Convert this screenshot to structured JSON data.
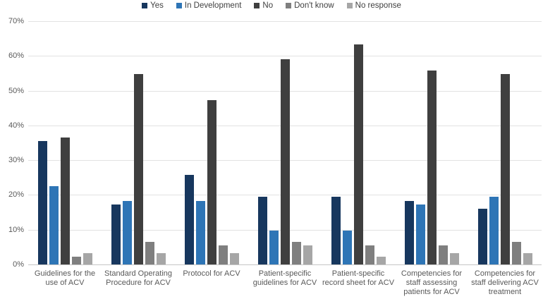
{
  "chart_data": {
    "type": "bar",
    "title": "",
    "categories": [
      "Guidelines for the use of ACV",
      "Standard Operating Procedure for ACV",
      "Protocol for ACV",
      "Patient-specific guidelines for ACV",
      "Patient-specific record sheet for ACV",
      "Competencies for staff assessing patients for ACV",
      "Competencies for staff delivering ACV treatment"
    ],
    "series": [
      {
        "name": "Yes",
        "color": "#17375E",
        "values": [
          35.5,
          17.2,
          25.8,
          19.4,
          19.4,
          18.3,
          16.1
        ]
      },
      {
        "name": "In Development",
        "color": "#2E75B6",
        "values": [
          22.6,
          18.3,
          18.3,
          9.7,
          9.7,
          17.2,
          19.4
        ]
      },
      {
        "name": "No",
        "color": "#3F3F3F",
        "values": [
          36.6,
          54.8,
          47.3,
          59.1,
          63.4,
          55.9,
          54.8
        ]
      },
      {
        "name": "Don't know",
        "color": "#7F7F7F",
        "values": [
          2.2,
          6.5,
          5.4,
          6.5,
          5.4,
          5.4,
          6.5
        ]
      },
      {
        "name": "No response",
        "color": "#A6A6A6",
        "values": [
          3.2,
          3.2,
          3.2,
          5.4,
          2.2,
          3.2,
          3.2
        ]
      }
    ],
    "y_axis": {
      "min": 0,
      "max": 70,
      "step": 10,
      "ticks": [
        "0%",
        "10%",
        "20%",
        "30%",
        "40%",
        "50%",
        "60%",
        "70%"
      ]
    },
    "xlabel": "",
    "ylabel": "",
    "grid": true,
    "legend_position": "top"
  },
  "colors": {
    "background": "#FFFFFF",
    "gridline": "#E2E2E2",
    "axis_line": "#C6C6C6",
    "tick_text": "#595959",
    "legend_text": "#404040"
  }
}
